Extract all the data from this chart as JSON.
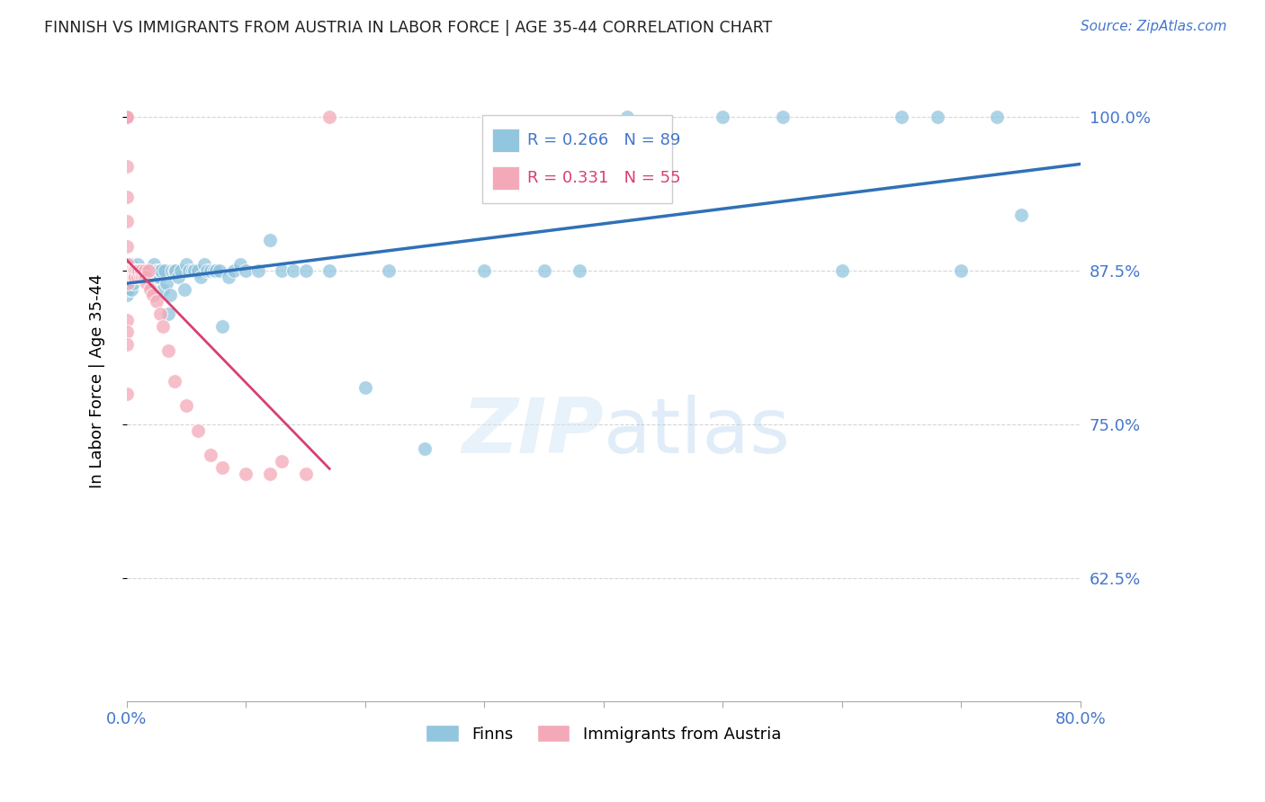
{
  "title": "FINNISH VS IMMIGRANTS FROM AUSTRIA IN LABOR FORCE | AGE 35-44 CORRELATION CHART",
  "source": "Source: ZipAtlas.com",
  "ylabel": "In Labor Force | Age 35-44",
  "xmin": 0.0,
  "xmax": 0.8,
  "ymin": 0.525,
  "ymax": 1.045,
  "watermark_zip": "ZIP",
  "watermark_atlas": "atlas",
  "legend_blue_label": "Finns",
  "legend_pink_label": "Immigrants from Austria",
  "R_blue": "0.266",
  "N_blue": "89",
  "R_pink": "0.331",
  "N_pink": "55",
  "blue_scatter_color": "#92c5de",
  "pink_scatter_color": "#f4a9b8",
  "trendline_blue_color": "#3070b8",
  "trendline_pink_color": "#d84070",
  "grid_color": "#cccccc",
  "axis_color": "#4477cc",
  "title_color": "#222222",
  "ytick_values": [
    0.625,
    0.75,
    0.875,
    1.0
  ],
  "ytick_labels": [
    "62.5%",
    "75.0%",
    "87.5%",
    "100.0%"
  ],
  "finns_x": [
    0.0,
    0.0,
    0.0,
    0.001,
    0.001,
    0.002,
    0.003,
    0.003,
    0.004,
    0.005,
    0.005,
    0.006,
    0.007,
    0.007,
    0.008,
    0.009,
    0.009,
    0.01,
    0.01,
    0.011,
    0.012,
    0.012,
    0.013,
    0.014,
    0.015,
    0.015,
    0.016,
    0.017,
    0.018,
    0.019,
    0.02,
    0.021,
    0.022,
    0.023,
    0.024,
    0.025,
    0.026,
    0.027,
    0.028,
    0.029,
    0.03,
    0.032,
    0.033,
    0.035,
    0.036,
    0.038,
    0.04,
    0.041,
    0.043,
    0.045,
    0.048,
    0.05,
    0.052,
    0.055,
    0.057,
    0.06,
    0.062,
    0.065,
    0.067,
    0.07,
    0.073,
    0.075,
    0.078,
    0.08,
    0.085,
    0.09,
    0.095,
    0.1,
    0.11,
    0.12,
    0.13,
    0.14,
    0.15,
    0.17,
    0.2,
    0.22,
    0.25,
    0.3,
    0.35,
    0.38,
    0.42,
    0.5,
    0.55,
    0.6,
    0.65,
    0.68,
    0.7,
    0.73,
    0.75
  ],
  "finns_y": [
    0.875,
    0.86,
    0.855,
    0.87,
    0.86,
    0.875,
    0.88,
    0.87,
    0.86,
    0.875,
    0.865,
    0.87,
    0.875,
    0.87,
    0.875,
    0.87,
    0.88,
    0.875,
    0.87,
    0.875,
    0.875,
    0.87,
    0.875,
    0.87,
    0.87,
    0.875,
    0.87,
    0.875,
    0.875,
    0.87,
    0.875,
    0.875,
    0.875,
    0.88,
    0.87,
    0.875,
    0.875,
    0.87,
    0.875,
    0.875,
    0.86,
    0.875,
    0.865,
    0.84,
    0.855,
    0.875,
    0.875,
    0.875,
    0.87,
    0.875,
    0.86,
    0.88,
    0.875,
    0.875,
    0.875,
    0.875,
    0.87,
    0.88,
    0.875,
    0.875,
    0.875,
    0.875,
    0.875,
    0.83,
    0.87,
    0.875,
    0.88,
    0.875,
    0.875,
    0.9,
    0.875,
    0.875,
    0.875,
    0.875,
    0.78,
    0.875,
    0.73,
    0.875,
    0.875,
    0.875,
    1.0,
    1.0,
    1.0,
    0.875,
    1.0,
    1.0,
    0.875,
    1.0,
    0.92
  ],
  "austria_x": [
    0.0,
    0.0,
    0.0,
    0.0,
    0.0,
    0.0,
    0.0,
    0.0,
    0.0,
    0.001,
    0.001,
    0.001,
    0.002,
    0.002,
    0.003,
    0.003,
    0.004,
    0.004,
    0.005,
    0.005,
    0.006,
    0.006,
    0.007,
    0.007,
    0.008,
    0.009,
    0.01,
    0.011,
    0.012,
    0.013,
    0.014,
    0.015,
    0.016,
    0.017,
    0.018,
    0.02,
    0.022,
    0.025,
    0.028,
    0.03,
    0.035,
    0.04,
    0.05,
    0.06,
    0.07,
    0.08,
    0.1,
    0.12,
    0.13,
    0.15,
    0.17,
    0.0,
    0.0,
    0.0,
    0.0
  ],
  "austria_y": [
    1.0,
    1.0,
    1.0,
    1.0,
    1.0,
    0.96,
    0.935,
    0.915,
    0.895,
    0.88,
    0.875,
    0.865,
    0.875,
    0.87,
    0.875,
    0.875,
    0.875,
    0.87,
    0.875,
    0.87,
    0.875,
    0.87,
    0.875,
    0.87,
    0.875,
    0.87,
    0.875,
    0.87,
    0.875,
    0.87,
    0.87,
    0.875,
    0.87,
    0.865,
    0.875,
    0.86,
    0.855,
    0.85,
    0.84,
    0.83,
    0.81,
    0.785,
    0.765,
    0.745,
    0.725,
    0.715,
    0.71,
    0.71,
    0.72,
    0.71,
    1.0,
    0.835,
    0.825,
    0.815,
    0.775
  ]
}
